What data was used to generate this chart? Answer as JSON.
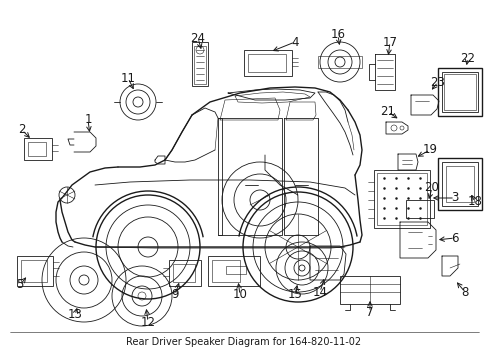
{
  "title": "Rear Driver Speaker Diagram for 164-820-11-02",
  "bg_color": "#ffffff",
  "line_color": "#1a1a1a",
  "figsize": [
    4.89,
    3.6
  ],
  "dpi": 100,
  "label_fontsize": 8.5,
  "caption_fontsize": 7.0
}
